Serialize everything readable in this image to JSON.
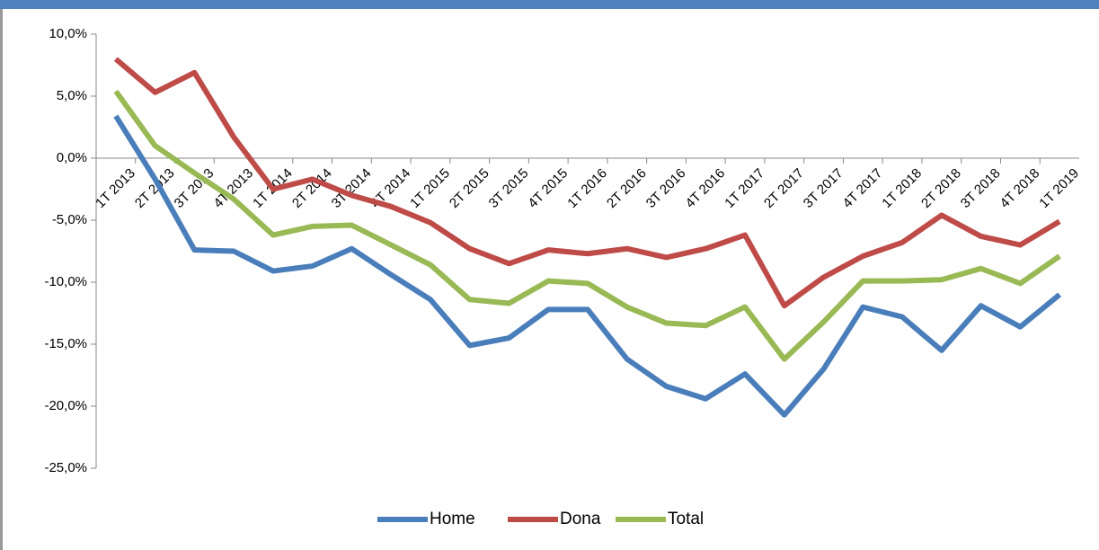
{
  "chart_data": {
    "type": "line",
    "categories": [
      "1T 2013",
      "2T 2013",
      "3T 2013",
      "4T 2013",
      "1T 2014",
      "2T 2014",
      "3T 2014",
      "4T 2014",
      "1T 2015",
      "2T 2015",
      "3T 2015",
      "4T 2015",
      "1T 2016",
      "2T 2016",
      "3T 2016",
      "4T 2016",
      "1T 2017",
      "2T 2017",
      "3T 2017",
      "4T 2017",
      "1T 2018",
      "2T 2018",
      "3T 2018",
      "4T 2018",
      "1T 2019"
    ],
    "series": [
      {
        "name": "Home",
        "color": "#4a7ebb",
        "values": [
          3.4,
          -1.7,
          -7.4,
          -7.5,
          -9.1,
          -8.7,
          -7.3,
          -9.4,
          -11.4,
          -15.1,
          -14.5,
          -12.2,
          -12.2,
          -16.2,
          -18.4,
          -19.4,
          -17.4,
          -20.7,
          -17.0,
          -12.0,
          -12.8,
          -15.5,
          -11.9,
          -13.6,
          -11.0
        ]
      },
      {
        "name": "Dona",
        "color": "#be4b48",
        "values": [
          8.0,
          5.3,
          6.9,
          1.7,
          -2.5,
          -1.7,
          -3.0,
          -3.9,
          -5.2,
          -7.3,
          -8.5,
          -7.4,
          -7.7,
          -7.3,
          -8.0,
          -7.3,
          -6.2,
          -11.9,
          -9.6,
          -7.9,
          -6.8,
          -4.6,
          -6.3,
          -7.0,
          -5.1
        ]
      },
      {
        "name": "Total",
        "color": "#98b954",
        "values": [
          5.4,
          1.0,
          -1.2,
          -3.3,
          -6.2,
          -5.5,
          -5.4,
          -7.0,
          -8.6,
          -11.4,
          -11.7,
          -9.9,
          -10.1,
          -12.0,
          -13.3,
          -13.5,
          -12.0,
          -16.2,
          -13.2,
          -9.9,
          -9.9,
          -9.8,
          -8.9,
          -10.1,
          -7.9
        ]
      }
    ],
    "ylim": [
      -25,
      10
    ],
    "yticks": [
      {
        "value": -25,
        "label": "-25,0%"
      },
      {
        "value": -20,
        "label": "-20,0%"
      },
      {
        "value": -15,
        "label": "-15,0%"
      },
      {
        "value": -10,
        "label": "-10,0%"
      },
      {
        "value": -5,
        "label": "-5,0%"
      },
      {
        "value": 0,
        "label": "0,0%"
      },
      {
        "value": 5,
        "label": "5,0%"
      },
      {
        "value": 10,
        "label": "10,0%"
      }
    ],
    "legend": "bottom"
  }
}
